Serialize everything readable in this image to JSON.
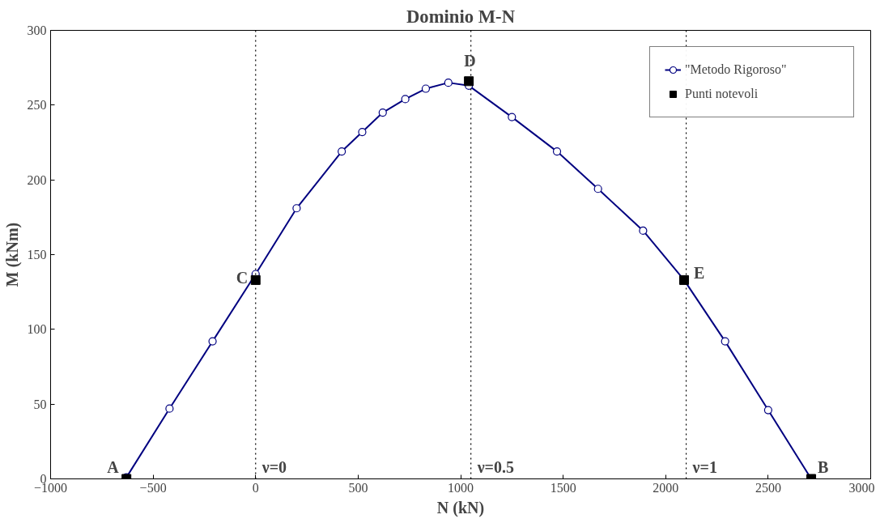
{
  "chart_data": {
    "type": "line",
    "title": "Dominio M-N",
    "xlabel": "N (kN)",
    "ylabel": "M (kNm)",
    "xlim": [
      -1000,
      3000
    ],
    "xticks": [
      -1000,
      -500,
      0,
      500,
      1000,
      1500,
      2000,
      2500,
      3000
    ],
    "ylim": [
      0,
      300
    ],
    "yticks": [
      0,
      50,
      100,
      150,
      200,
      250,
      300
    ],
    "grid": false,
    "legend": "top right",
    "series": [
      {
        "name": "\"Metodo Rigoroso\"",
        "marker": "circle",
        "color": "#000080",
        "x": [
          -630,
          -420,
          -210,
          0,
          200,
          420,
          520,
          620,
          730,
          830,
          940,
          1040,
          1250,
          1470,
          1670,
          1890,
          2090,
          2290,
          2500,
          2710
        ],
        "values": [
          1,
          47,
          92,
          137,
          181,
          219,
          232,
          245,
          254,
          261,
          265,
          263,
          242,
          219,
          194,
          166,
          133,
          92,
          46,
          0
        ]
      },
      {
        "name": "Punti notevoli",
        "type": "scatter",
        "marker": "square",
        "color": "#000000",
        "x": [
          -630,
          2710,
          0,
          1040,
          2090
        ],
        "values": [
          0,
          0,
          133,
          266,
          133
        ]
      }
    ],
    "ref_lines": [
      {
        "axis": "x",
        "value": 0,
        "line_style": "dotted",
        "color": "#000000"
      },
      {
        "axis": "x",
        "value": 1050,
        "line_style": "dotted",
        "color": "#000000"
      },
      {
        "axis": "x",
        "value": 2100,
        "line_style": "dotted",
        "color": "#000000"
      }
    ],
    "annotations": [
      {
        "text": "A",
        "x": -630,
        "y": 0
      },
      {
        "text": "B",
        "x": 2710,
        "y": 0
      },
      {
        "text": "C",
        "x": 0,
        "y": 133
      },
      {
        "text": "D",
        "x": 1040,
        "y": 266
      },
      {
        "text": "E",
        "x": 2090,
        "y": 133
      },
      {
        "text": "ν=0",
        "x": 0,
        "y": 0
      },
      {
        "text": "ν=0.5",
        "x": 1050,
        "y": 0
      },
      {
        "text": "ν=1",
        "x": 2100,
        "y": 0
      }
    ]
  }
}
